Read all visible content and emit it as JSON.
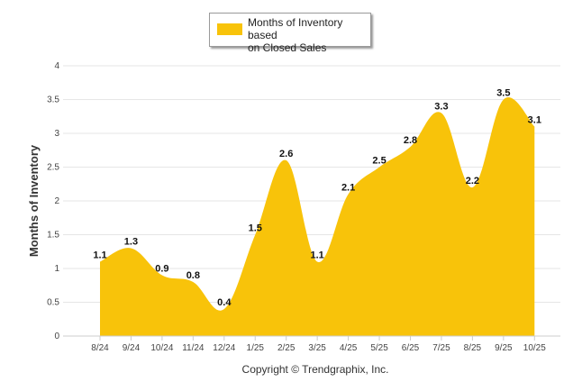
{
  "chart_data": {
    "type": "area",
    "series_name": "Months of Inventory based on Closed Sales",
    "categories": [
      "8/24",
      "9/24",
      "10/24",
      "11/24",
      "12/24",
      "1/25",
      "2/25",
      "3/25",
      "4/25",
      "5/25",
      "6/25",
      "7/25",
      "8/25",
      "9/25",
      "10/25"
    ],
    "values": [
      1.1,
      1.3,
      0.9,
      0.8,
      0.4,
      1.5,
      2.6,
      1.1,
      2.1,
      2.5,
      2.8,
      3.3,
      2.2,
      3.5,
      3.1
    ],
    "value_labels": [
      "1.1",
      "1.3",
      "0.9",
      "0.8",
      "0.4",
      "1.5",
      "2.6",
      "1.1",
      "2.1",
      "2.5",
      "2.8",
      "3.3",
      "2.2",
      "3.5",
      "3.1"
    ],
    "ylabel": "Months of Inventory",
    "xlabel": "",
    "ylim": [
      0,
      4
    ],
    "yticks": [
      "0",
      "0.5",
      "1",
      "1.5",
      "2",
      "2.5",
      "3",
      "3.5",
      "4"
    ],
    "legend_position": "top-center",
    "grid": true
  },
  "colors": {
    "fill": "#F8C30A",
    "grid": "#e6e6e6",
    "axis": "#cccccc"
  },
  "legend": {
    "line1": "Months of Inventory based",
    "line2": "on Closed Sales"
  },
  "footer": {
    "copyright": "Copyright © Trendgraphix, Inc."
  }
}
